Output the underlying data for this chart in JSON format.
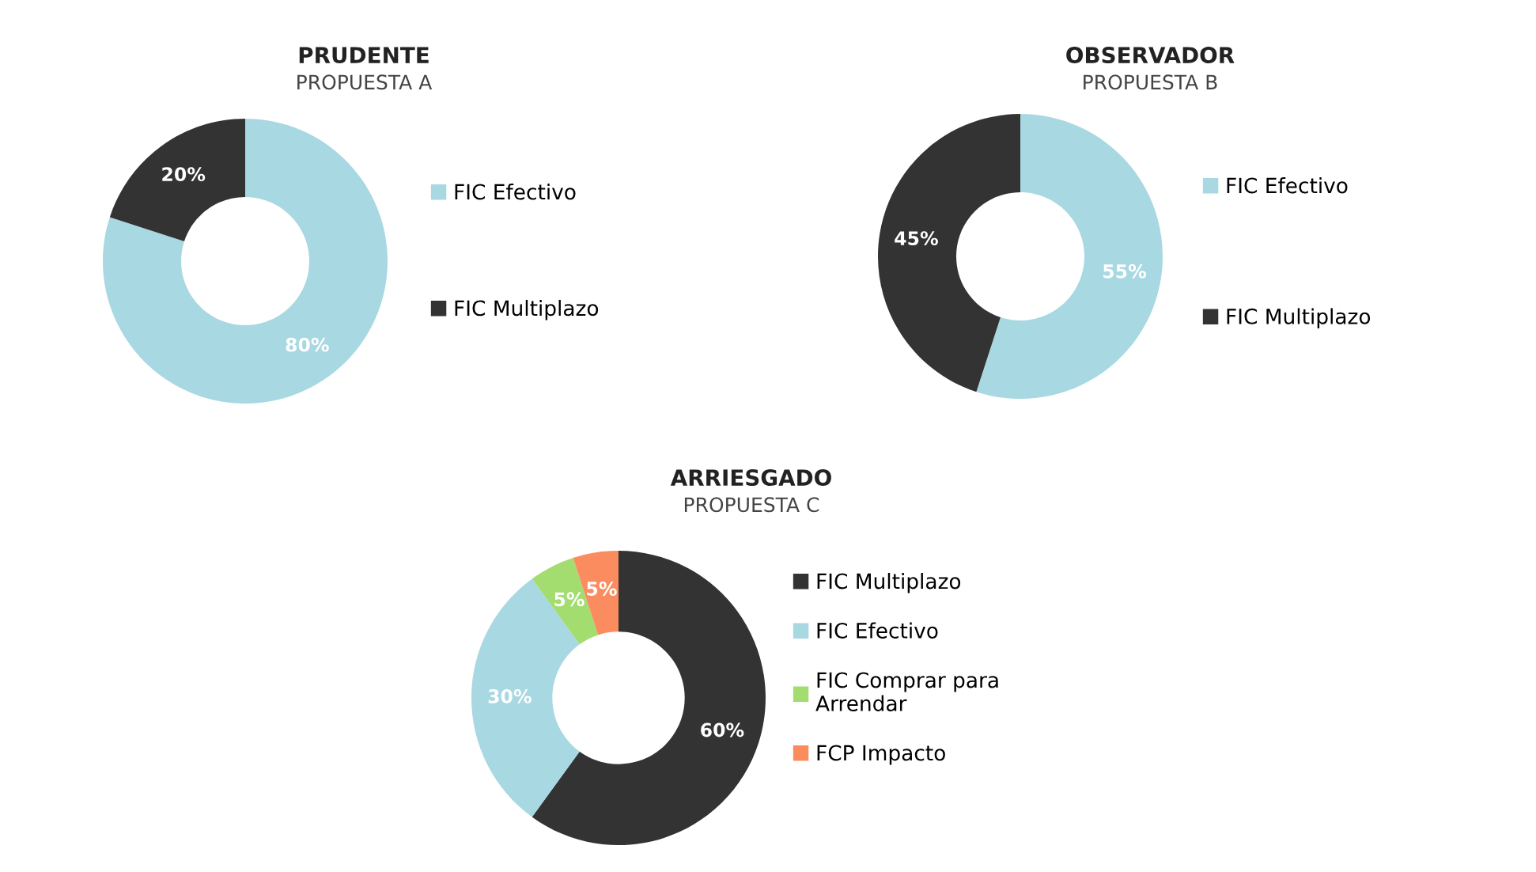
{
  "chart_data": [
    {
      "type": "donut",
      "title": "PRUDENTE",
      "subtitle": "PROPUESTA A",
      "categories": [
        "FIC Efectivo",
        "FIC Multiplazo"
      ],
      "values": [
        80,
        20
      ],
      "colors": [
        "#a8d8e2",
        "#333333"
      ],
      "value_labels": [
        "80%",
        "20%"
      ],
      "legend": "right"
    },
    {
      "type": "donut",
      "title": "OBSERVADOR",
      "subtitle": "PROPUESTA B",
      "categories": [
        "FIC Efectivo",
        "FIC Multiplazo"
      ],
      "values": [
        55,
        45
      ],
      "colors": [
        "#a8d8e2",
        "#333333"
      ],
      "value_labels": [
        "55%",
        "45%"
      ],
      "legend": "right"
    },
    {
      "type": "donut",
      "title": "ARRIESGADO",
      "subtitle": "PROPUESTA C",
      "categories": [
        "FIC Multiplazo",
        "FIC Efectivo",
        "FIC Comprar para\nArrendar",
        "FCP Impacto"
      ],
      "values": [
        60,
        30,
        5,
        5
      ],
      "colors": [
        "#333333",
        "#a8d8e2",
        "#a3dd6f",
        "#fb8c5f"
      ],
      "value_labels": [
        "60%",
        "30%",
        "5%",
        "5%"
      ],
      "legend": "right"
    }
  ]
}
